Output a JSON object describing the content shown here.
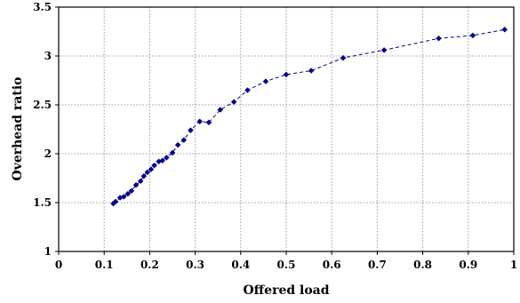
{
  "chart_data": {
    "type": "scatter",
    "title": "",
    "xlabel": "Offered load",
    "ylabel": "Overhead ratio",
    "xlim": [
      0,
      1
    ],
    "ylim": [
      1,
      3.5
    ],
    "xticks": [
      "0",
      "0.1",
      "0.2",
      "0.3",
      "0.4",
      "0.5",
      "0.6",
      "0.7",
      "0.8",
      "0.9",
      "1"
    ],
    "yticks": [
      "1",
      "1.5",
      "2",
      "2.5",
      "3",
      "3.5"
    ],
    "grid": true,
    "line_style": "dashed",
    "marker": "diamond",
    "series": [
      {
        "color": "#00008b",
        "x": [
          0.12,
          0.125,
          0.135,
          0.143,
          0.152,
          0.16,
          0.17,
          0.18,
          0.187,
          0.195,
          0.203,
          0.21,
          0.22,
          0.228,
          0.237,
          0.25,
          0.262,
          0.275,
          0.29,
          0.31,
          0.33,
          0.355,
          0.385,
          0.415,
          0.455,
          0.5,
          0.555,
          0.625,
          0.715,
          0.835,
          0.91,
          0.98
        ],
        "y": [
          1.49,
          1.51,
          1.55,
          1.56,
          1.59,
          1.62,
          1.68,
          1.72,
          1.77,
          1.81,
          1.84,
          1.88,
          1.92,
          1.93,
          1.96,
          2.01,
          2.09,
          2.14,
          2.24,
          2.33,
          2.32,
          2.45,
          2.53,
          2.65,
          2.74,
          2.81,
          2.85,
          2.98,
          3.06,
          3.18,
          3.21,
          3.27
        ]
      }
    ]
  }
}
